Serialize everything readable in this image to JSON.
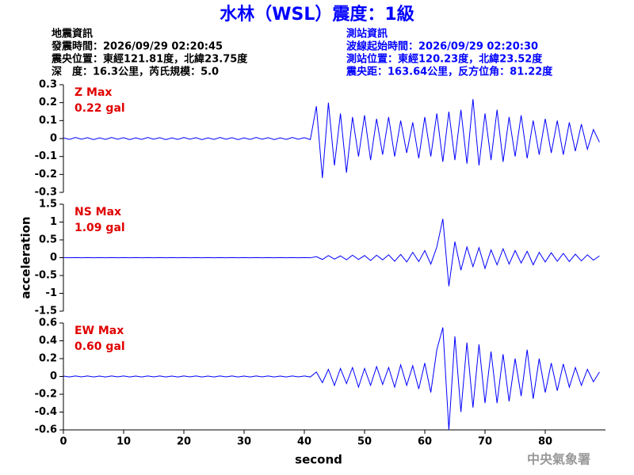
{
  "header": {
    "title": "水林（WSL）震度：1級",
    "left": [
      "地震資訊",
      "發震時間：2026/09/29 02:20:45",
      "震央位置：東經121.81度，北緯23.75度",
      "深　度：16.3公里，芮氏規模：5.0"
    ],
    "right": [
      "測站資訊",
      "波線起始時間：2026/09/29 02:20:30",
      "測站位置：東經120.23度，北緯23.52度",
      "震央距：163.64公里，反方位角：81.22度"
    ]
  },
  "footer": "中央氣象署",
  "chart_data": [
    {
      "type": "line",
      "color": "#0000ff",
      "annotations": [
        "Z Max",
        "0.22 gal"
      ],
      "xlim": [
        0,
        90
      ],
      "ylim": [
        -0.3,
        0.3
      ],
      "yticks": [
        0.3,
        0.2,
        0.1,
        0,
        -0.1,
        -0.2,
        -0.3
      ],
      "x": [
        0,
        1,
        2,
        3,
        4,
        5,
        6,
        7,
        8,
        9,
        10,
        11,
        12,
        13,
        14,
        15,
        16,
        17,
        18,
        19,
        20,
        21,
        22,
        23,
        24,
        25,
        26,
        27,
        28,
        29,
        30,
        31,
        32,
        33,
        34,
        35,
        36,
        37,
        38,
        39,
        40,
        41,
        42,
        43,
        44,
        45,
        46,
        47,
        48,
        49,
        50,
        51,
        52,
        53,
        54,
        55,
        56,
        57,
        58,
        59,
        60,
        61,
        62,
        63,
        64,
        65,
        66,
        67,
        68,
        69,
        70,
        71,
        72,
        73,
        74,
        75,
        76,
        77,
        78,
        79,
        80,
        81,
        82,
        83,
        84,
        85,
        86,
        87,
        88,
        89
      ],
      "values": [
        0.004,
        -0.005,
        0.006,
        -0.004,
        0.005,
        -0.006,
        0.004,
        -0.005,
        0.006,
        -0.004,
        0.005,
        -0.006,
        0.004,
        -0.005,
        0.006,
        -0.004,
        0.005,
        -0.006,
        0.004,
        -0.005,
        0.006,
        -0.004,
        0.005,
        -0.006,
        0.004,
        -0.005,
        0.006,
        -0.004,
        0.005,
        -0.006,
        0.004,
        -0.005,
        0.006,
        -0.004,
        0.005,
        -0.006,
        0.004,
        -0.005,
        0.006,
        -0.004,
        0.005,
        -0.006,
        0.18,
        -0.22,
        0.2,
        -0.15,
        0.14,
        -0.19,
        0.12,
        -0.1,
        0.13,
        -0.12,
        0.11,
        -0.09,
        0.12,
        -0.1,
        0.1,
        -0.08,
        0.09,
        -0.11,
        0.12,
        -0.1,
        0.14,
        -0.13,
        0.15,
        -0.12,
        0.16,
        -0.14,
        0.22,
        -0.15,
        0.14,
        -0.12,
        0.16,
        -0.13,
        0.12,
        -0.1,
        0.13,
        -0.11,
        0.1,
        -0.09,
        0.11,
        -0.08,
        0.1,
        -0.09,
        0.09,
        -0.07,
        0.08,
        -0.06,
        0.05,
        -0.02
      ]
    },
    {
      "type": "line",
      "color": "#0000ff",
      "annotations": [
        "NS Max",
        "1.09 gal"
      ],
      "ylabel": "acceleration",
      "xlim": [
        0,
        90
      ],
      "ylim": [
        -1.5,
        1.5
      ],
      "yticks": [
        1.5,
        1,
        0.5,
        0,
        -0.5,
        -1,
        -1.5
      ],
      "x": [
        0,
        1,
        2,
        3,
        4,
        5,
        6,
        7,
        8,
        9,
        10,
        11,
        12,
        13,
        14,
        15,
        16,
        17,
        18,
        19,
        20,
        21,
        22,
        23,
        24,
        25,
        26,
        27,
        28,
        29,
        30,
        31,
        32,
        33,
        34,
        35,
        36,
        37,
        38,
        39,
        40,
        41,
        42,
        43,
        44,
        45,
        46,
        47,
        48,
        49,
        50,
        51,
        52,
        53,
        54,
        55,
        56,
        57,
        58,
        59,
        60,
        61,
        62,
        63,
        64,
        65,
        66,
        67,
        68,
        69,
        70,
        71,
        72,
        73,
        74,
        75,
        76,
        77,
        78,
        79,
        80,
        81,
        82,
        83,
        84,
        85,
        86,
        87,
        88,
        89
      ],
      "values": [
        0.003,
        -0.004,
        0.004,
        -0.003,
        0.003,
        -0.004,
        0.003,
        -0.004,
        0.004,
        -0.003,
        0.003,
        -0.004,
        0.003,
        -0.004,
        0.004,
        -0.003,
        0.003,
        -0.004,
        0.003,
        -0.004,
        0.004,
        -0.003,
        0.003,
        -0.004,
        0.003,
        -0.004,
        0.004,
        -0.003,
        0.003,
        -0.004,
        0.003,
        -0.004,
        0.004,
        -0.003,
        0.003,
        -0.004,
        0.003,
        -0.004,
        0.004,
        -0.003,
        0.003,
        -0.004,
        0.03,
        -0.05,
        0.06,
        -0.04,
        0.05,
        -0.06,
        0.07,
        -0.05,
        0.06,
        -0.08,
        0.07,
        -0.06,
        0.08,
        -0.1,
        0.09,
        -0.12,
        0.15,
        -0.11,
        0.2,
        -0.18,
        0.3,
        1.09,
        -0.8,
        0.45,
        -0.35,
        0.3,
        -0.25,
        0.28,
        -0.3,
        0.22,
        -0.2,
        0.25,
        -0.18,
        0.2,
        -0.15,
        0.18,
        -0.2,
        0.15,
        -0.12,
        0.14,
        -0.1,
        0.12,
        -0.11,
        0.1,
        -0.09,
        0.08,
        -0.07,
        0.05
      ]
    },
    {
      "type": "line",
      "color": "#0000ff",
      "annotations": [
        "EW Max",
        "0.60 gal"
      ],
      "xlabel": "second",
      "xlim": [
        0,
        90
      ],
      "xticks": [
        0,
        10,
        20,
        30,
        40,
        50,
        60,
        70,
        80
      ],
      "ylim": [
        -0.6,
        0.6
      ],
      "yticks": [
        0.6,
        0.4,
        0.2,
        0,
        -0.2,
        -0.4,
        -0.6
      ],
      "x": [
        0,
        1,
        2,
        3,
        4,
        5,
        6,
        7,
        8,
        9,
        10,
        11,
        12,
        13,
        14,
        15,
        16,
        17,
        18,
        19,
        20,
        21,
        22,
        23,
        24,
        25,
        26,
        27,
        28,
        29,
        30,
        31,
        32,
        33,
        34,
        35,
        36,
        37,
        38,
        39,
        40,
        41,
        42,
        43,
        44,
        45,
        46,
        47,
        48,
        49,
        50,
        51,
        52,
        53,
        54,
        55,
        56,
        57,
        58,
        59,
        60,
        61,
        62,
        63,
        64,
        65,
        66,
        67,
        68,
        69,
        70,
        71,
        72,
        73,
        74,
        75,
        76,
        77,
        78,
        79,
        80,
        81,
        82,
        83,
        84,
        85,
        86,
        87,
        88,
        89
      ],
      "values": [
        0.004,
        -0.005,
        0.006,
        -0.004,
        0.005,
        -0.006,
        0.004,
        -0.005,
        0.006,
        -0.004,
        0.005,
        -0.006,
        0.004,
        -0.005,
        0.006,
        -0.004,
        0.005,
        -0.006,
        0.004,
        -0.005,
        0.006,
        -0.004,
        0.005,
        -0.006,
        0.004,
        -0.005,
        0.006,
        -0.004,
        0.005,
        -0.006,
        0.004,
        -0.005,
        0.006,
        -0.004,
        0.005,
        -0.006,
        0.004,
        -0.005,
        0.006,
        -0.004,
        0.005,
        -0.006,
        0.05,
        -0.07,
        0.08,
        -0.1,
        0.09,
        -0.08,
        0.1,
        -0.12,
        0.09,
        -0.1,
        0.11,
        -0.09,
        0.1,
        -0.12,
        0.13,
        -0.1,
        0.12,
        -0.14,
        0.15,
        -0.18,
        0.3,
        0.55,
        -0.6,
        0.45,
        -0.4,
        0.38,
        -0.35,
        0.36,
        -0.3,
        0.28,
        -0.3,
        0.25,
        -0.28,
        0.2,
        -0.22,
        0.3,
        -0.25,
        0.2,
        -0.18,
        0.15,
        -0.16,
        0.14,
        -0.12,
        0.1,
        -0.1,
        0.08,
        -0.06,
        0.05
      ]
    }
  ]
}
